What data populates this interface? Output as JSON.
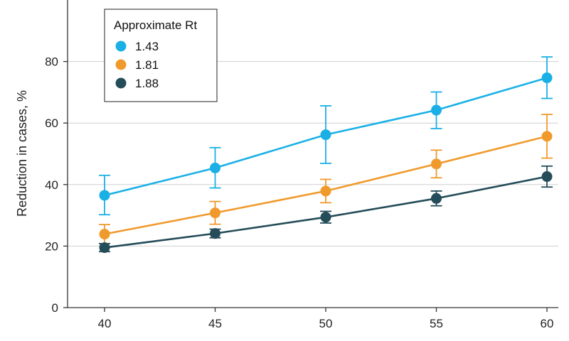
{
  "chart_data": {
    "type": "line",
    "title": "",
    "xlabel": "",
    "ylabel": "Reduction in cases, %",
    "x": [
      40,
      45,
      50,
      55,
      60
    ],
    "xlim": [
      37,
      62
    ],
    "ylim": [
      0,
      100
    ],
    "yticks": [
      0,
      20,
      40,
      60,
      80
    ],
    "xticks": [
      40,
      45,
      50,
      55,
      60
    ],
    "grid": "horizontal",
    "legend": {
      "title": "Approximate Rt",
      "placement": "top-left"
    },
    "series": [
      {
        "name": "1.43",
        "color": "#1ab0e6",
        "values": [
          36.5,
          45.4,
          56.2,
          64.2,
          74.7
        ],
        "err_low": [
          30.2,
          38.9,
          46.9,
          58.2,
          68.0
        ],
        "err_high": [
          43.0,
          52.0,
          65.6,
          70.1,
          81.5
        ]
      },
      {
        "name": "1.81",
        "color": "#f09a2c",
        "values": [
          23.9,
          30.8,
          37.9,
          46.7,
          55.7
        ],
        "err_low": [
          20.8,
          27.1,
          34.1,
          42.2,
          48.6
        ],
        "err_high": [
          27.0,
          34.5,
          41.7,
          51.2,
          62.8
        ]
      },
      {
        "name": "1.88",
        "color": "#244c59",
        "values": [
          19.5,
          24.1,
          29.4,
          35.5,
          42.6
        ],
        "err_low": [
          18.2,
          22.7,
          27.5,
          33.1,
          39.2
        ],
        "err_high": [
          20.8,
          25.5,
          31.3,
          37.9,
          46.0
        ]
      }
    ]
  }
}
